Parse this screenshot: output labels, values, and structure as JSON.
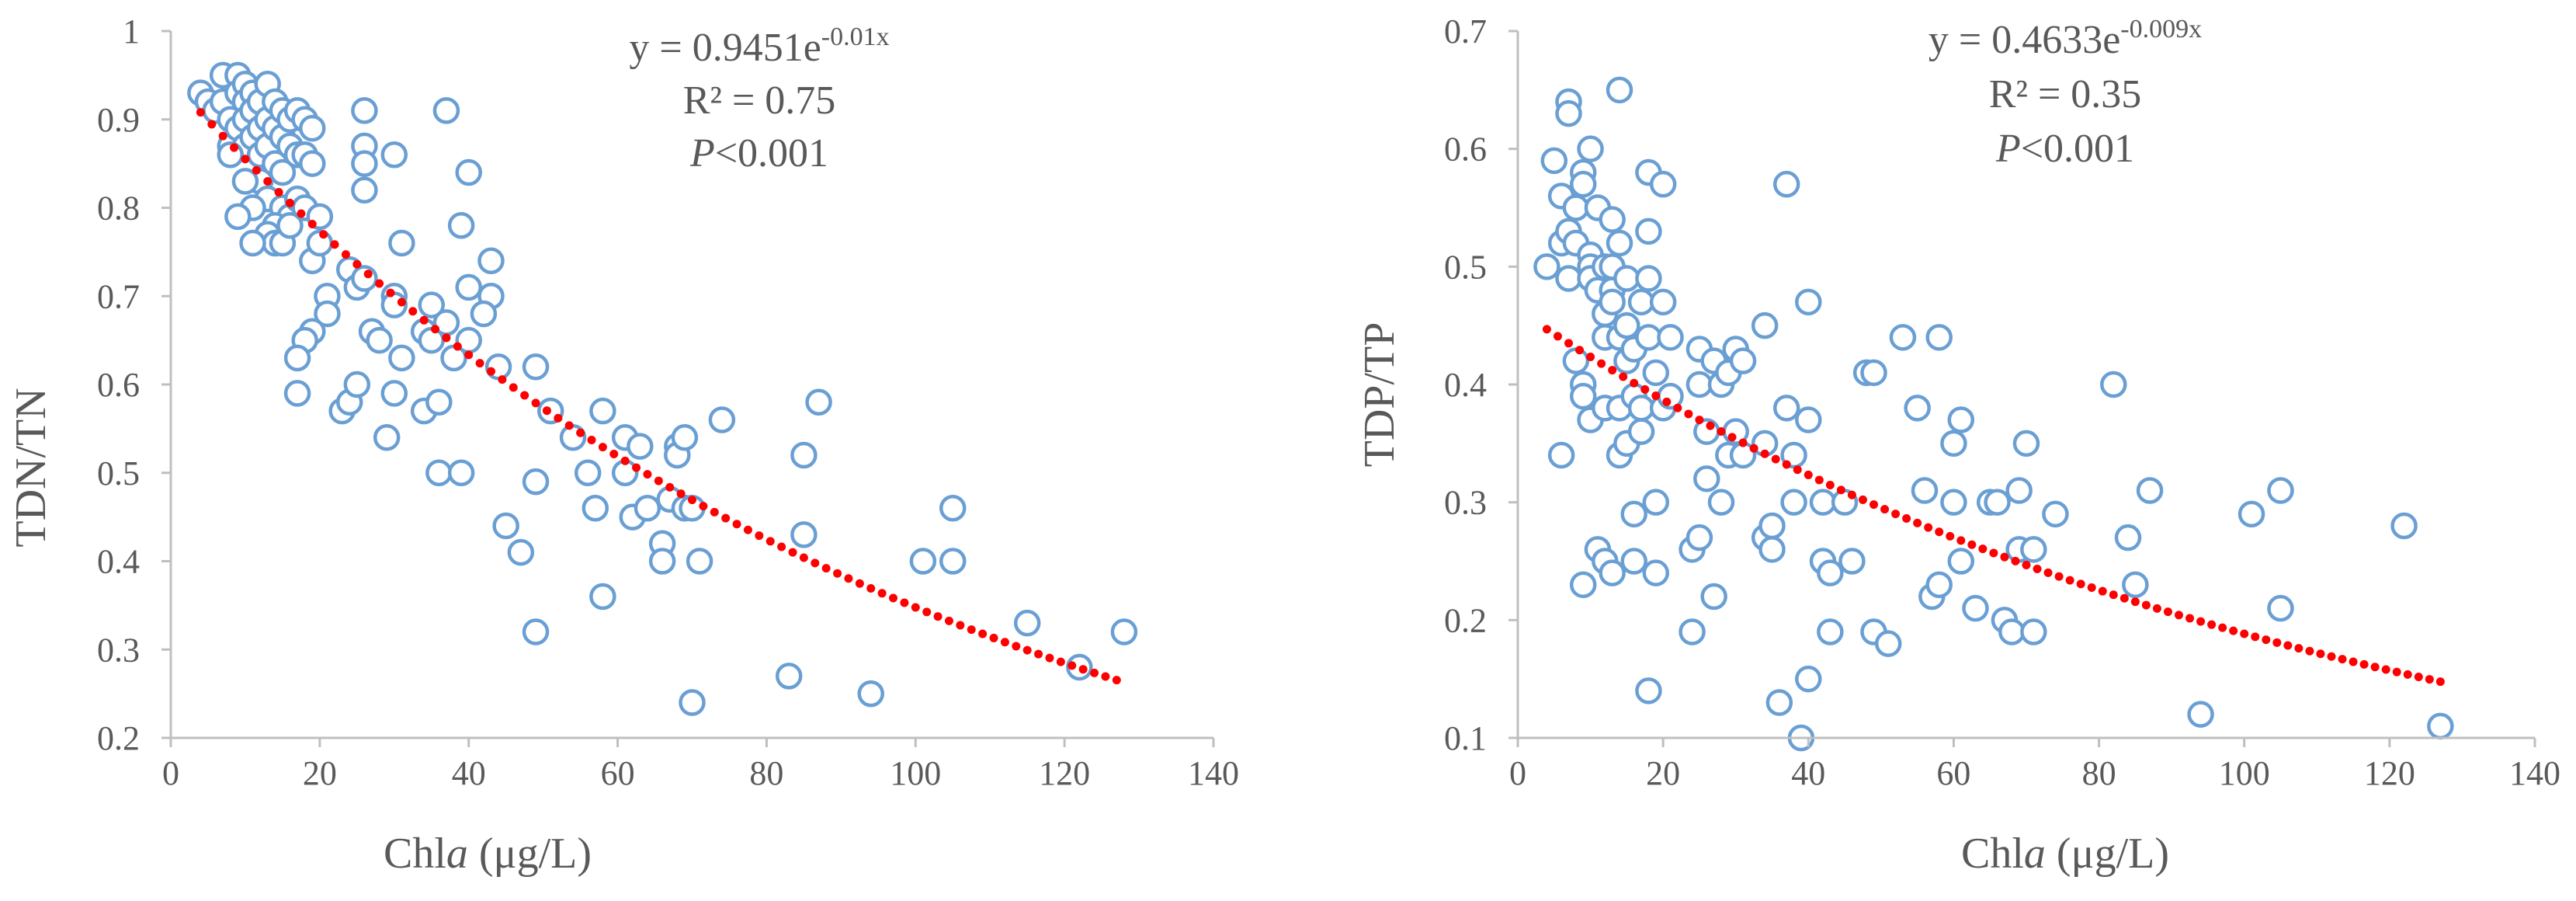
{
  "colors": {
    "marker": "#6a9fd4",
    "trend": "#ff0000",
    "axis": "#bfbfbf",
    "text": "#595959"
  },
  "chart_data": [
    {
      "type": "scatter",
      "xlabel_prefix": "Chl",
      "xlabel_italic": "a",
      "xlabel_suffix": " (μg/L)",
      "ylabel": "TDN/TN",
      "xlim": [
        0,
        140
      ],
      "ylim": [
        0.2,
        1.0
      ],
      "xticks": [
        0,
        20,
        40,
        60,
        80,
        100,
        120,
        140
      ],
      "yticks": [
        0.2,
        0.3,
        0.4,
        0.5,
        0.6,
        0.7,
        0.8,
        0.9,
        1.0
      ],
      "ytick_labels": [
        "0.2",
        "0.3",
        "0.4",
        "0.5",
        "0.6",
        "0.7",
        "0.8",
        "0.9",
        "1"
      ],
      "equation": {
        "base": "y = 0.9451e",
        "exponent": "-0.01x"
      },
      "r2": "R² = 0.75",
      "p_italic": "P",
      "p_rest": "<0.001",
      "trendline": {
        "a": 0.9451,
        "b": -0.01,
        "x_start": 4,
        "x_end": 128
      },
      "points": [
        [
          4,
          0.93
        ],
        [
          5,
          0.92
        ],
        [
          6,
          0.91
        ],
        [
          7,
          0.95
        ],
        [
          7,
          0.92
        ],
        [
          8,
          0.9
        ],
        [
          8,
          0.87
        ],
        [
          9,
          0.95
        ],
        [
          9,
          0.93
        ],
        [
          9,
          0.89
        ],
        [
          10,
          0.94
        ],
        [
          10,
          0.92
        ],
        [
          10,
          0.9
        ],
        [
          10,
          0.87
        ],
        [
          11,
          0.93
        ],
        [
          11,
          0.91
        ],
        [
          11,
          0.88
        ],
        [
          12,
          0.92
        ],
        [
          12,
          0.89
        ],
        [
          12,
          0.86
        ],
        [
          13,
          0.94
        ],
        [
          13,
          0.9
        ],
        [
          13,
          0.87
        ],
        [
          14,
          0.92
        ],
        [
          14,
          0.89
        ],
        [
          14,
          0.85
        ],
        [
          15,
          0.91
        ],
        [
          15,
          0.88
        ],
        [
          15,
          0.84
        ],
        [
          16,
          0.9
        ],
        [
          16,
          0.87
        ],
        [
          17,
          0.91
        ],
        [
          17,
          0.86
        ],
        [
          18,
          0.9
        ],
        [
          18,
          0.86
        ],
        [
          19,
          0.89
        ],
        [
          19,
          0.85
        ],
        [
          12,
          0.83
        ],
        [
          13,
          0.81
        ],
        [
          11,
          0.8
        ],
        [
          15,
          0.8
        ],
        [
          16,
          0.79
        ],
        [
          14,
          0.78
        ],
        [
          13,
          0.77
        ],
        [
          14,
          0.76
        ],
        [
          15,
          0.76
        ],
        [
          16,
          0.78
        ],
        [
          17,
          0.81
        ],
        [
          18,
          0.8
        ],
        [
          9,
          0.79
        ],
        [
          11,
          0.76
        ],
        [
          10,
          0.83
        ],
        [
          8,
          0.86
        ],
        [
          20,
          0.79
        ],
        [
          19,
          0.74
        ],
        [
          20,
          0.76
        ],
        [
          26,
          0.91
        ],
        [
          26,
          0.87
        ],
        [
          26,
          0.85
        ],
        [
          26,
          0.82
        ],
        [
          30,
          0.86
        ],
        [
          37,
          0.91
        ],
        [
          40,
          0.84
        ],
        [
          39,
          0.78
        ],
        [
          31,
          0.76
        ],
        [
          43,
          0.74
        ],
        [
          40,
          0.71
        ],
        [
          43,
          0.7
        ],
        [
          42,
          0.68
        ],
        [
          24,
          0.73
        ],
        [
          25,
          0.71
        ],
        [
          26,
          0.72
        ],
        [
          21,
          0.7
        ],
        [
          21,
          0.68
        ],
        [
          19,
          0.66
        ],
        [
          18,
          0.65
        ],
        [
          17,
          0.63
        ],
        [
          27,
          0.66
        ],
        [
          28,
          0.65
        ],
        [
          30,
          0.7
        ],
        [
          30,
          0.69
        ],
        [
          31,
          0.63
        ],
        [
          34,
          0.66
        ],
        [
          35,
          0.69
        ],
        [
          35,
          0.65
        ],
        [
          37,
          0.67
        ],
        [
          38,
          0.63
        ],
        [
          40,
          0.65
        ],
        [
          44,
          0.62
        ],
        [
          17,
          0.59
        ],
        [
          23,
          0.57
        ],
        [
          24,
          0.58
        ],
        [
          25,
          0.6
        ],
        [
          29,
          0.54
        ],
        [
          30,
          0.59
        ],
        [
          34,
          0.57
        ],
        [
          36,
          0.58
        ],
        [
          36,
          0.5
        ],
        [
          39,
          0.5
        ],
        [
          49,
          0.62
        ],
        [
          51,
          0.57
        ],
        [
          54,
          0.54
        ],
        [
          56,
          0.5
        ],
        [
          57,
          0.46
        ],
        [
          58,
          0.57
        ],
        [
          61,
          0.54
        ],
        [
          61,
          0.5
        ],
        [
          62,
          0.45
        ],
        [
          63,
          0.53
        ],
        [
          64,
          0.46
        ],
        [
          67,
          0.47
        ],
        [
          68,
          0.53
        ],
        [
          68,
          0.52
        ],
        [
          69,
          0.54
        ],
        [
          69,
          0.46
        ],
        [
          70,
          0.46
        ],
        [
          74,
          0.56
        ],
        [
          85,
          0.52
        ],
        [
          87,
          0.58
        ],
        [
          45,
          0.44
        ],
        [
          47,
          0.41
        ],
        [
          49,
          0.49
        ],
        [
          49,
          0.32
        ],
        [
          58,
          0.36
        ],
        [
          66,
          0.42
        ],
        [
          66,
          0.4
        ],
        [
          71,
          0.4
        ],
        [
          70,
          0.24
        ],
        [
          83,
          0.27
        ],
        [
          85,
          0.43
        ],
        [
          94,
          0.25
        ],
        [
          101,
          0.4
        ],
        [
          105,
          0.46
        ],
        [
          105,
          0.4
        ],
        [
          115,
          0.33
        ],
        [
          122,
          0.28
        ],
        [
          128,
          0.32
        ]
      ]
    },
    {
      "type": "scatter",
      "xlabel_prefix": "Chl",
      "xlabel_italic": "a",
      "xlabel_suffix": " (μg/L)",
      "ylabel": "TDP/TP",
      "xlim": [
        0,
        140
      ],
      "ylim": [
        0.1,
        0.7
      ],
      "xticks": [
        0,
        20,
        40,
        60,
        80,
        100,
        120,
        140
      ],
      "yticks": [
        0.1,
        0.2,
        0.3,
        0.4,
        0.5,
        0.6,
        0.7
      ],
      "ytick_labels": [
        "0.1",
        "0.2",
        "0.3",
        "0.4",
        "0.5",
        "0.6",
        "0.7"
      ],
      "equation": {
        "base": "y = 0.4633e",
        "exponent": "-0.009x"
      },
      "r2": "R² = 0.35",
      "p_italic": "P",
      "p_rest": "<0.001",
      "trendline": {
        "a": 0.4633,
        "b": -0.009,
        "x_start": 4,
        "x_end": 127
      },
      "points": [
        [
          4,
          0.5
        ],
        [
          5,
          0.59
        ],
        [
          6,
          0.56
        ],
        [
          6,
          0.52
        ],
        [
          7,
          0.64
        ],
        [
          7,
          0.63
        ],
        [
          7,
          0.53
        ],
        [
          7,
          0.49
        ],
        [
          8,
          0.55
        ],
        [
          8,
          0.52
        ],
        [
          9,
          0.58
        ],
        [
          9,
          0.57
        ],
        [
          9,
          0.4
        ],
        [
          9,
          0.39
        ],
        [
          9,
          0.23
        ],
        [
          10,
          0.6
        ],
        [
          10,
          0.51
        ],
        [
          10,
          0.5
        ],
        [
          10,
          0.49
        ],
        [
          10,
          0.37
        ],
        [
          11,
          0.55
        ],
        [
          11,
          0.48
        ],
        [
          11,
          0.26
        ],
        [
          12,
          0.5
        ],
        [
          12,
          0.46
        ],
        [
          12,
          0.44
        ],
        [
          12,
          0.38
        ],
        [
          12,
          0.25
        ],
        [
          13,
          0.54
        ],
        [
          13,
          0.5
        ],
        [
          13,
          0.48
        ],
        [
          13,
          0.47
        ],
        [
          14,
          0.65
        ],
        [
          14,
          0.52
        ],
        [
          14,
          0.44
        ],
        [
          14,
          0.38
        ],
        [
          14,
          0.34
        ],
        [
          15,
          0.49
        ],
        [
          15,
          0.45
        ],
        [
          15,
          0.42
        ],
        [
          15,
          0.35
        ],
        [
          16,
          0.43
        ],
        [
          16,
          0.39
        ],
        [
          16,
          0.29
        ],
        [
          16,
          0.25
        ],
        [
          17,
          0.47
        ],
        [
          17,
          0.38
        ],
        [
          17,
          0.36
        ],
        [
          18,
          0.58
        ],
        [
          18,
          0.53
        ],
        [
          18,
          0.49
        ],
        [
          18,
          0.44
        ],
        [
          18,
          0.14
        ],
        [
          19,
          0.41
        ],
        [
          19,
          0.3
        ],
        [
          19,
          0.24
        ],
        [
          20,
          0.57
        ],
        [
          20,
          0.47
        ],
        [
          20,
          0.38
        ],
        [
          21,
          0.39
        ],
        [
          6,
          0.34
        ],
        [
          8,
          0.42
        ],
        [
          13,
          0.24
        ],
        [
          21,
          0.44
        ],
        [
          24,
          0.19
        ],
        [
          24,
          0.26
        ],
        [
          25,
          0.43
        ],
        [
          25,
          0.27
        ],
        [
          25,
          0.4
        ],
        [
          26,
          0.36
        ],
        [
          26,
          0.32
        ],
        [
          27,
          0.42
        ],
        [
          27,
          0.22
        ],
        [
          28,
          0.4
        ],
        [
          28,
          0.3
        ],
        [
          29,
          0.34
        ],
        [
          29,
          0.41
        ],
        [
          30,
          0.43
        ],
        [
          30,
          0.36
        ],
        [
          31,
          0.42
        ],
        [
          31,
          0.34
        ],
        [
          34,
          0.35
        ],
        [
          34,
          0.45
        ],
        [
          34,
          0.27
        ],
        [
          35,
          0.26
        ],
        [
          35,
          0.28
        ],
        [
          36,
          0.13
        ],
        [
          37,
          0.38
        ],
        [
          37,
          0.57
        ],
        [
          38,
          0.3
        ],
        [
          38,
          0.34
        ],
        [
          39,
          0.1
        ],
        [
          40,
          0.47
        ],
        [
          40,
          0.37
        ],
        [
          40,
          0.15
        ],
        [
          42,
          0.3
        ],
        [
          42,
          0.25
        ],
        [
          43,
          0.24
        ],
        [
          43,
          0.19
        ],
        [
          45,
          0.3
        ],
        [
          46,
          0.25
        ],
        [
          48,
          0.41
        ],
        [
          49,
          0.19
        ],
        [
          49,
          0.41
        ],
        [
          51,
          0.18
        ],
        [
          53,
          0.44
        ],
        [
          55,
          0.38
        ],
        [
          56,
          0.31
        ],
        [
          57,
          0.22
        ],
        [
          58,
          0.44
        ],
        [
          58,
          0.23
        ],
        [
          60,
          0.35
        ],
        [
          60,
          0.3
        ],
        [
          61,
          0.37
        ],
        [
          61,
          0.25
        ],
        [
          63,
          0.21
        ],
        [
          65,
          0.3
        ],
        [
          66,
          0.3
        ],
        [
          67,
          0.2
        ],
        [
          68,
          0.19
        ],
        [
          69,
          0.31
        ],
        [
          69,
          0.26
        ],
        [
          70,
          0.35
        ],
        [
          71,
          0.26
        ],
        [
          71,
          0.19
        ],
        [
          74,
          0.29
        ],
        [
          82,
          0.4
        ],
        [
          84,
          0.27
        ],
        [
          85,
          0.23
        ],
        [
          87,
          0.31
        ],
        [
          94,
          0.12
        ],
        [
          101,
          0.29
        ],
        [
          105,
          0.31
        ],
        [
          105,
          0.21
        ],
        [
          122,
          0.28
        ],
        [
          127,
          0.11
        ]
      ]
    }
  ]
}
